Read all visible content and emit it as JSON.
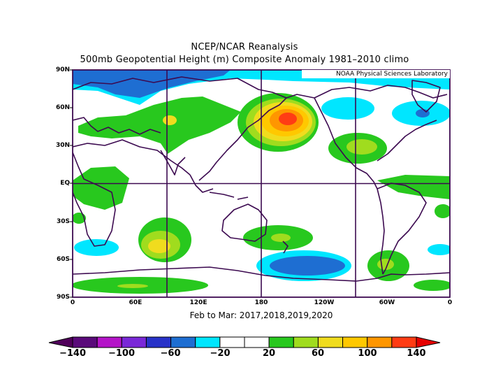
{
  "title": "NCEP/NCAR Reanalysis",
  "subtitle": "500mb Geopotential Height (m) Composite Anomaly 1981–2010 climo",
  "credit": "NOAA Physical Sciences Laboratory",
  "period": "Feb to Mar: 2017,2018,2019,2020",
  "lat_labels": [
    "90N",
    "60N",
    "30N",
    "EQ",
    "30S",
    "60S",
    "90S"
  ],
  "lon_labels": [
    "0",
    "60E",
    "120E",
    "180",
    "120W",
    "60W",
    "0"
  ],
  "colorbar": {
    "labels": [
      "−140",
      "−100",
      "−60",
      "−20",
      "20",
      "60",
      "100",
      "140"
    ],
    "colors": [
      "#5a0a7a",
      "#b414c8",
      "#7a28d8",
      "#2832c8",
      "#1e6ed2",
      "#00e6ff",
      "#ffffff",
      "#ffffff",
      "#28c81e",
      "#a0dc1e",
      "#f0dc1e",
      "#ffc800",
      "#ff9600",
      "#ff3c14"
    ],
    "under_color": "#50005a",
    "over_color": "#e60000"
  },
  "map": {
    "frame_color": "#3c0a50",
    "land_color": "#3c0a50",
    "zero_color": "#ffffff"
  }
}
